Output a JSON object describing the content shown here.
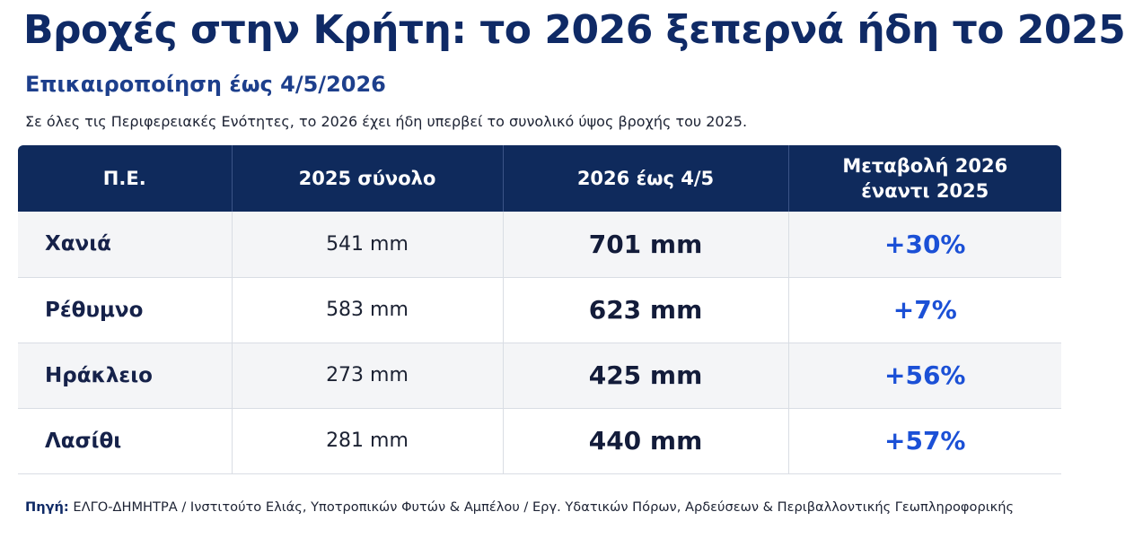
{
  "title": "Βροχές στην Κρήτη: το 2026 ξεπερνά ήδη το 2025",
  "subtitle": "Επικαιροποίηση έως 4/5/2026",
  "note": "Σε όλες τις Περιφερειακές Ενότητες, το 2026 έχει ήδη υπερβεί το συνολικό ύψος βροχής του 2025.",
  "chart_data": {
    "type": "table",
    "columns": [
      "Π.Ε.",
      "2025 σύνολο",
      "2026 έως 4/5",
      "Μεταβολή 2026 έναντι 2025"
    ],
    "header_lines": {
      "col4_line1": "Μεταβολή 2026",
      "col4_line2": "έναντι 2025"
    },
    "rows": [
      {
        "region": "Χανιά",
        "total_2025": "541 mm",
        "to_date_2026": "701 mm",
        "change": "+30%"
      },
      {
        "region": "Ρέθυμνο",
        "total_2025": "583 mm",
        "to_date_2026": "623 mm",
        "change": "+7%"
      },
      {
        "region": "Ηράκλειο",
        "total_2025": "273 mm",
        "to_date_2026": "425 mm",
        "change": "+56%"
      },
      {
        "region": "Λασίθι",
        "total_2025": "281 mm",
        "to_date_2026": "440 mm",
        "change": "+57%"
      }
    ]
  },
  "source": {
    "label": "Πηγή:",
    "text": "ΕΛΓΟ-ΔΗΜΗΤΡΑ / Ινστιτούτο Ελιάς, Υποτροπικών Φυτών & Αμπέλου / Εργ. Υδατικών Πόρων, Αρδεύσεων & Περιβαλλοντικής Γεωπληροφορικής"
  },
  "colors": {
    "title": "#0f2a66",
    "header_bg": "#0f2a5c",
    "change_text": "#1b50d6"
  }
}
